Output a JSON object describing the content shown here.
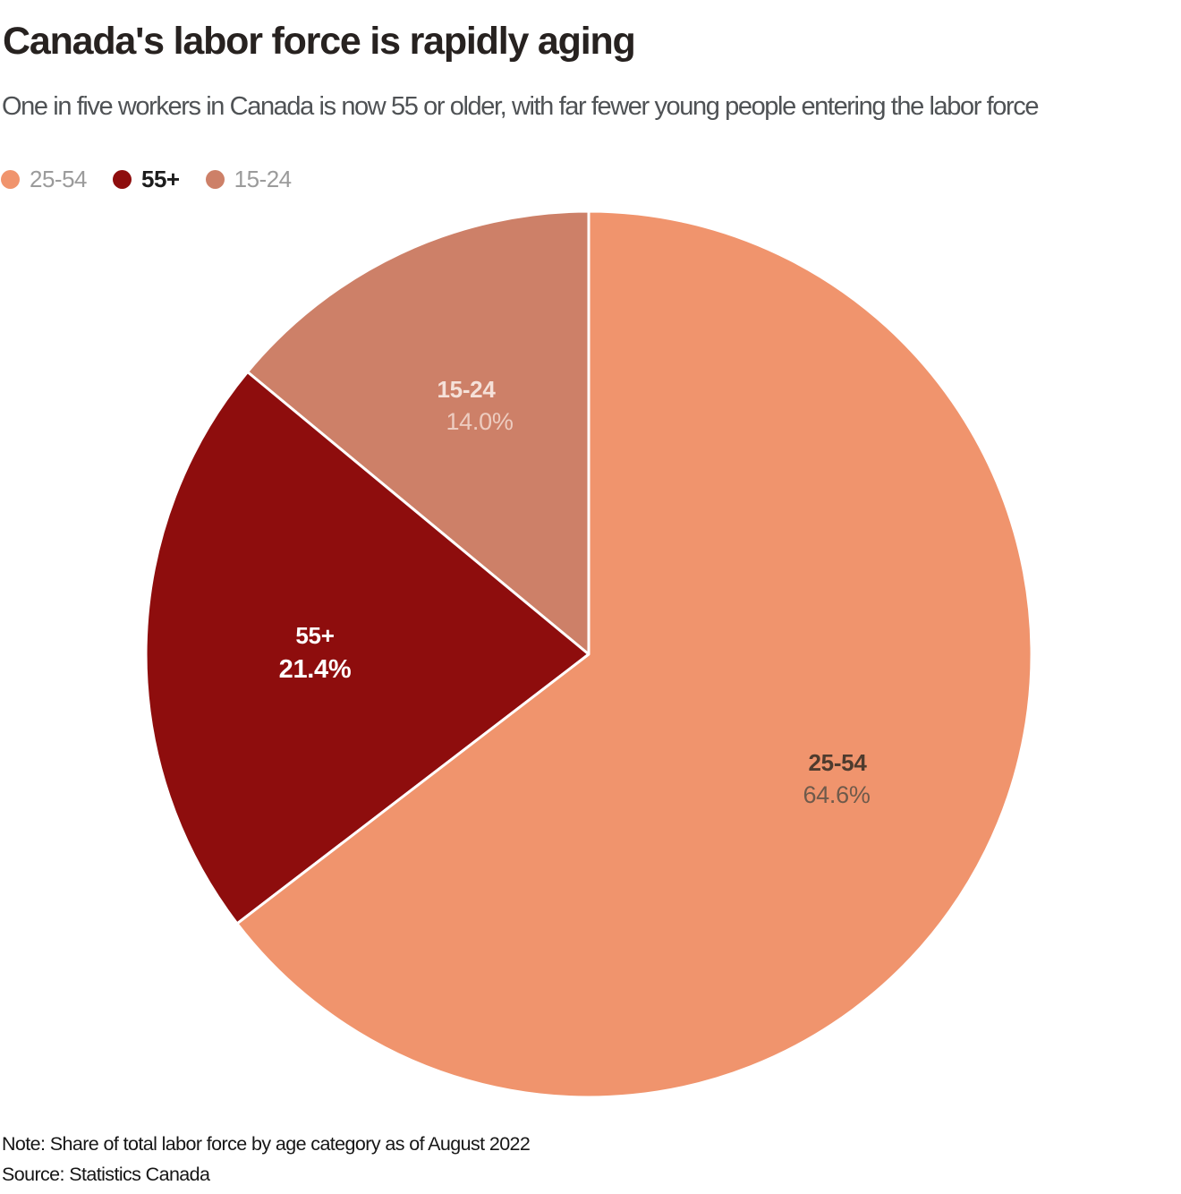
{
  "header": {
    "title": "Canada's labor force is rapidly aging",
    "subtitle": "One in five workers in Canada is now 55 or older, with far fewer young people entering the labor force"
  },
  "chart_data": {
    "type": "pie",
    "title": "Canada's labor force is rapidly aging",
    "subtitle": "One in five workers in Canada is now 55 or older, with far fewer young people entering the labor force",
    "categories": [
      "25-54",
      "55+",
      "15-24"
    ],
    "values": [
      64.6,
      21.4,
      14.0
    ],
    "value_labels": [
      "64.6%",
      "21.4%",
      "14.0%"
    ],
    "unit": "%",
    "total": 100,
    "colors": [
      "#F0946D",
      "#8E0D0D",
      "#CD8068"
    ],
    "start_angle_deg": 0,
    "direction": "clockwise",
    "legend_position": "top-left",
    "label_placement": "inside",
    "slice_border_color": "#ffffff"
  },
  "footer": {
    "note": "Note: Share of total labor force by age category as of August 2022",
    "source": "Source: Statistics Canada"
  }
}
